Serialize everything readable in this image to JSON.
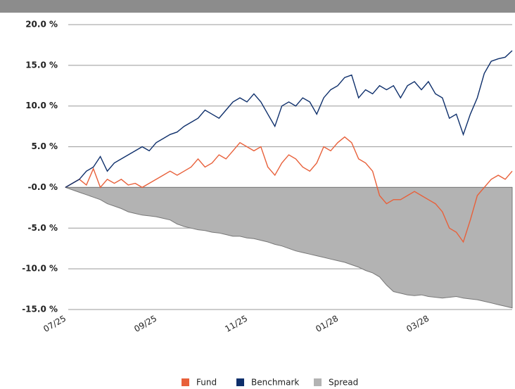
{
  "chart_data": {
    "type": "line",
    "categories": [
      "07/25",
      null,
      null,
      null,
      null,
      null,
      null,
      null,
      null,
      null,
      null,
      null,
      null,
      "09/25",
      null,
      null,
      null,
      null,
      null,
      null,
      null,
      null,
      null,
      null,
      null,
      null,
      "11/25",
      null,
      null,
      null,
      null,
      null,
      null,
      null,
      null,
      null,
      null,
      null,
      null,
      "01/28",
      null,
      null,
      null,
      null,
      null,
      null,
      null,
      null,
      null,
      null,
      null,
      null,
      "03/28",
      null,
      null,
      null,
      null,
      null,
      null,
      null,
      null,
      null,
      null,
      null,
      null
    ],
    "series": [
      {
        "name": "Fund",
        "color": "#e8603a",
        "values": [
          0,
          0.5,
          1,
          0.3,
          2.3,
          0,
          1,
          0.5,
          1,
          0.3,
          0.5,
          0,
          0.5,
          1,
          1.5,
          2,
          1.5,
          2,
          2.5,
          3.5,
          2.5,
          3,
          4,
          3.5,
          4.5,
          5.5,
          5,
          4.5,
          5,
          2.5,
          1.5,
          3,
          4,
          3.5,
          2.5,
          2,
          3,
          5,
          4.5,
          5.5,
          6.2,
          5.5,
          3.5,
          3,
          2,
          -1,
          -2,
          -1.5,
          -1.5,
          -1,
          -0.5,
          -1,
          -1.5,
          -2,
          -3,
          -5,
          -5.5,
          -6.7,
          -4,
          -1,
          0,
          1,
          1.5,
          1,
          2
        ]
      },
      {
        "name": "Benchmark",
        "color": "#0e2f6b",
        "values": [
          0,
          0.5,
          1,
          2,
          2.5,
          3.8,
          2,
          3,
          3.5,
          4,
          4.5,
          5,
          4.5,
          5.5,
          6,
          6.5,
          6.8,
          7.5,
          8,
          8.5,
          9.5,
          9,
          8.5,
          9.5,
          10.5,
          11,
          10.5,
          11.5,
          10.5,
          9,
          7.5,
          10,
          10.5,
          10,
          11,
          10.5,
          9,
          11,
          12,
          12.5,
          13.5,
          13.8,
          11,
          12,
          11.5,
          12.5,
          12,
          12.5,
          11,
          12.5,
          13,
          12,
          13,
          11.5,
          11,
          8.5,
          9,
          6.5,
          9,
          11,
          14,
          15.5,
          15.8,
          16,
          16.8
        ]
      },
      {
        "name": "Spread",
        "color": "#b3b3b3",
        "area": true,
        "values": [
          0,
          -0.3,
          -0.6,
          -0.9,
          -1.2,
          -1.5,
          -2,
          -2.3,
          -2.6,
          -3,
          -3.2,
          -3.4,
          -3.5,
          -3.6,
          -3.8,
          -4,
          -4.5,
          -4.8,
          -5,
          -5.2,
          -5.3,
          -5.5,
          -5.6,
          -5.8,
          -6,
          -6,
          -6.2,
          -6.3,
          -6.5,
          -6.7,
          -7,
          -7.2,
          -7.5,
          -7.8,
          -8,
          -8.2,
          -8.4,
          -8.6,
          -8.8,
          -9,
          -9.2,
          -9.5,
          -9.8,
          -10.2,
          -10.5,
          -11,
          -12,
          -12.8,
          -13,
          -13.2,
          -13.3,
          -13.2,
          -13.4,
          -13.5,
          -13.6,
          -13.5,
          -13.4,
          -13.6,
          -13.7,
          -13.8,
          -14,
          -14.2,
          -14.4,
          -14.6,
          -14.8
        ]
      }
    ],
    "ylim": [
      -15,
      20
    ],
    "yticks": [
      {
        "value": -15,
        "label": "-15.0 %"
      },
      {
        "value": -10,
        "label": "-10.0 %"
      },
      {
        "value": -5,
        "label": "-5.0 %"
      },
      {
        "value": 0,
        "label": "-0.0 %"
      },
      {
        "value": 5,
        "label": "5.0 %"
      },
      {
        "value": 10,
        "label": "10.0 %"
      },
      {
        "value": 15,
        "label": "15.0 %"
      },
      {
        "value": 20,
        "label": "20.0 %"
      }
    ],
    "grid": true
  }
}
